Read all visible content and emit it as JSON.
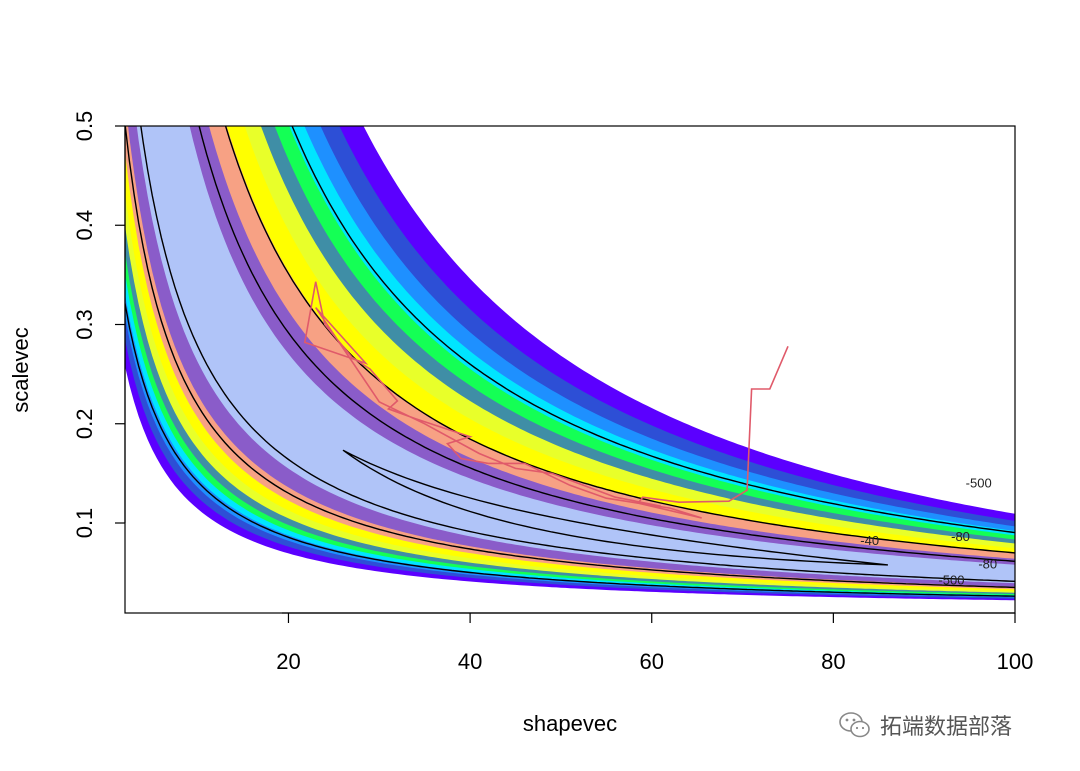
{
  "chart_data": {
    "type": "contour",
    "xlabel": "shapevec",
    "ylabel": "scalevec",
    "xlim": [
      2,
      100
    ],
    "ylim": [
      0.01,
      0.5
    ],
    "x_ticks": [
      "20",
      "40",
      "60",
      "80",
      "100"
    ],
    "x_tick_values": [
      20,
      40,
      60,
      80,
      100
    ],
    "y_ticks": [
      "0.1",
      "0.2",
      "0.3",
      "0.4",
      "0.5"
    ],
    "y_tick_values": [
      0.1,
      0.2,
      0.3,
      0.4,
      0.5
    ],
    "fill_bands_inner_to_outer": [
      "#b0c4f8",
      "#8a5cc9",
      "#f7a184",
      "#ffff00",
      "#e8ff2a",
      "#3f8ea6",
      "#14ff55",
      "#00e5ff",
      "#1e90ff",
      "#2d4fd6",
      "#5b00ff"
    ],
    "contour_lines": [
      {
        "label": "-40"
      },
      {
        "label": "-80"
      },
      {
        "label": "-80"
      },
      {
        "label": "-500"
      },
      {
        "label": "-500"
      }
    ],
    "mcmc_trace": {
      "color": "#e05a6a",
      "points": [
        [
          75.0,
          0.278
        ],
        [
          73.0,
          0.235
        ],
        [
          71.0,
          0.235
        ],
        [
          70.5,
          0.133
        ],
        [
          68.5,
          0.122
        ],
        [
          63.0,
          0.121
        ],
        [
          59.0,
          0.126
        ],
        [
          58.5,
          0.12
        ],
        [
          65.5,
          0.105
        ],
        [
          62.0,
          0.115
        ],
        [
          55.0,
          0.125
        ],
        [
          51.0,
          0.138
        ],
        [
          46.0,
          0.16
        ],
        [
          42.0,
          0.16
        ],
        [
          39.0,
          0.165
        ],
        [
          37.5,
          0.18
        ],
        [
          40.0,
          0.187
        ],
        [
          34.0,
          0.205
        ],
        [
          31.0,
          0.215
        ],
        [
          32.0,
          0.223
        ],
        [
          29.0,
          0.255
        ],
        [
          27.0,
          0.267
        ],
        [
          24.0,
          0.3
        ],
        [
          23.0,
          0.343
        ],
        [
          21.8,
          0.282
        ],
        [
          28.5,
          0.261
        ],
        [
          23.0,
          0.317
        ],
        [
          30.0,
          0.222
        ],
        [
          35.0,
          0.2
        ],
        [
          41.0,
          0.17
        ],
        [
          45.0,
          0.155
        ],
        [
          49.0,
          0.15
        ],
        [
          56.0,
          0.126
        ],
        [
          61.0,
          0.117
        ]
      ]
    },
    "contour_label_texts": [
      "-500",
      "-40",
      "-80",
      "-80",
      "-500"
    ]
  },
  "watermark": {
    "text": "拓端数据部落"
  }
}
